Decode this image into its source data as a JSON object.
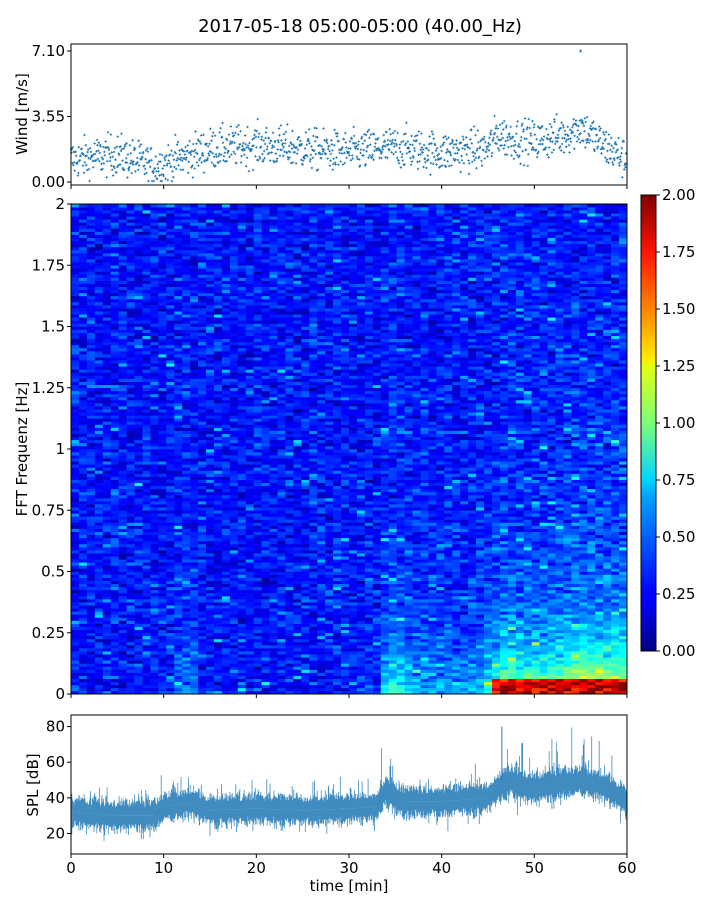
{
  "title": "2017-05-18 05:00-05:00 (40.00_Hz)",
  "chart_data": [
    {
      "type": "scatter",
      "name": "wind",
      "ylabel": "Wind [m/s]",
      "yticks": [
        "0.00",
        "3.55",
        "7.10"
      ],
      "ylim": [
        0,
        7.1
      ],
      "xlim": [
        0,
        60
      ],
      "color": "#1f77b4",
      "profile": {
        "x": [
          0,
          5,
          9,
          10,
          15,
          20,
          25,
          30,
          35,
          40,
          45,
          46,
          47,
          50,
          53,
          55,
          56,
          58,
          60
        ],
        "y": [
          1.2,
          1.5,
          0.8,
          1.0,
          1.8,
          2.0,
          1.8,
          1.6,
          1.9,
          1.6,
          1.8,
          2.6,
          2.4,
          2.2,
          2.5,
          3.0,
          2.6,
          1.8,
          1.2
        ]
      },
      "peak": {
        "x": 55,
        "y": 7.1
      }
    },
    {
      "type": "heatmap",
      "name": "spectrogram",
      "ylabel": "FFT Frequenz [Hz]",
      "yticks": [
        "0",
        "0.25",
        "0.5",
        "0.75",
        "1",
        "1.25",
        "1.5",
        "1.75",
        "2"
      ],
      "ylim": [
        0,
        2
      ],
      "xlim": [
        0,
        60
      ],
      "colorbar": {
        "ticks": [
          "0.00",
          "0.25",
          "0.50",
          "0.75",
          "1.00",
          "1.25",
          "1.50",
          "1.75",
          "2.00"
        ],
        "range": [
          0,
          2
        ],
        "colormap": "jet"
      },
      "energy_profile": {
        "x": [
          0,
          10,
          12,
          13,
          14,
          20,
          30,
          33,
          34,
          35,
          36,
          40,
          44,
          46,
          47,
          50,
          53,
          55,
          57,
          60
        ],
        "intensity": [
          0.35,
          0.35,
          0.7,
          0.75,
          0.35,
          0.35,
          0.4,
          0.5,
          1.1,
          1.3,
          1.0,
          0.8,
          0.9,
          1.4,
          1.8,
          1.5,
          1.7,
          2.0,
          1.9,
          1.9
        ]
      }
    },
    {
      "type": "area",
      "name": "spl",
      "ylabel": "SPL [dB]",
      "xlabel": "time [min]",
      "xticks": [
        "0",
        "10",
        "20",
        "30",
        "40",
        "50",
        "60"
      ],
      "xlim": [
        0,
        60
      ],
      "ylim": [
        8.5,
        86.5
      ],
      "yticks": [
        "20",
        "40",
        "60",
        "80"
      ],
      "color": "#1f77b4",
      "profile": {
        "x": [
          0,
          5,
          9,
          10,
          13,
          15,
          20,
          25,
          30,
          33,
          34,
          35,
          36,
          40,
          45,
          46,
          47,
          50,
          53,
          55,
          58,
          60
        ],
        "y": [
          32,
          30,
          30,
          35,
          37,
          33,
          34,
          33,
          34,
          35,
          45,
          40,
          38,
          38,
          40,
          45,
          50,
          45,
          48,
          50,
          45,
          38
        ]
      },
      "peak": {
        "x": 46.5,
        "y": 80
      }
    }
  ]
}
